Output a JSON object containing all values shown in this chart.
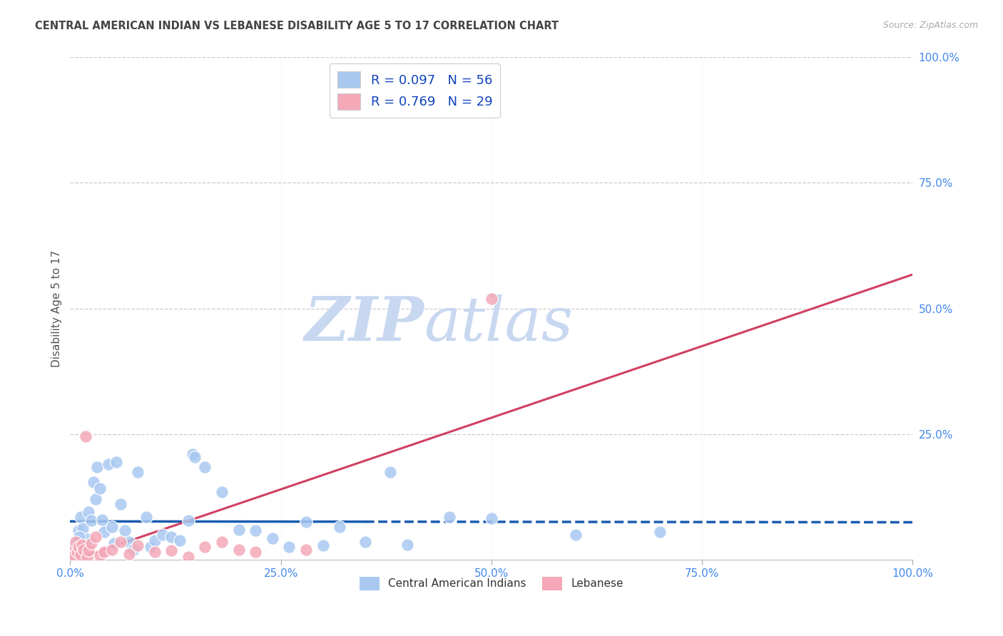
{
  "title": "CENTRAL AMERICAN INDIAN VS LEBANESE DISABILITY AGE 5 TO 17 CORRELATION CHART",
  "source": "Source: ZipAtlas.com",
  "ylabel": "Disability Age 5 to 17",
  "r_blue": 0.097,
  "n_blue": 56,
  "r_pink": 0.769,
  "n_pink": 29,
  "blue_color": "#A8C8F0",
  "pink_color": "#F4A8B8",
  "blue_line_color": "#1A5CB0",
  "pink_line_color": "#D04060",
  "legend_text_color": "#1144BB",
  "title_color": "#444444",
  "grid_color": "#CCCCCC",
  "watermark_color": "#C8D8F0",
  "axis_label_color": "#4488EE",
  "source_color": "#AAAAAA",
  "bottom_legend_color": "#333333",
  "blue_scatter": [
    [
      0.5,
      3.2
    ],
    [
      0.7,
      2.1
    ],
    [
      1.0,
      5.8
    ],
    [
      1.2,
      8.5
    ],
    [
      1.5,
      6.2
    ],
    [
      1.8,
      3.5
    ],
    [
      2.0,
      4.1
    ],
    [
      2.2,
      9.5
    ],
    [
      2.5,
      7.8
    ],
    [
      2.8,
      15.5
    ],
    [
      3.0,
      12.0
    ],
    [
      3.2,
      18.5
    ],
    [
      3.5,
      14.2
    ],
    [
      3.8,
      8.0
    ],
    [
      4.0,
      5.5
    ],
    [
      4.5,
      19.0
    ],
    [
      5.0,
      6.5
    ],
    [
      5.2,
      3.2
    ],
    [
      5.5,
      19.5
    ],
    [
      6.0,
      11.0
    ],
    [
      6.5,
      5.8
    ],
    [
      7.0,
      3.5
    ],
    [
      7.5,
      2.0
    ],
    [
      8.0,
      17.5
    ],
    [
      9.0,
      8.5
    ],
    [
      9.5,
      2.5
    ],
    [
      10.0,
      3.8
    ],
    [
      11.0,
      5.0
    ],
    [
      12.0,
      4.5
    ],
    [
      13.0,
      3.8
    ],
    [
      14.0,
      7.8
    ],
    [
      14.5,
      21.0
    ],
    [
      14.8,
      20.5
    ],
    [
      16.0,
      18.5
    ],
    [
      18.0,
      13.5
    ],
    [
      20.0,
      6.0
    ],
    [
      22.0,
      5.8
    ],
    [
      24.0,
      4.2
    ],
    [
      26.0,
      2.5
    ],
    [
      28.0,
      7.5
    ],
    [
      30.0,
      2.8
    ],
    [
      32.0,
      6.5
    ],
    [
      35.0,
      3.5
    ],
    [
      38.0,
      17.5
    ],
    [
      40.0,
      3.0
    ],
    [
      45.0,
      8.5
    ],
    [
      50.0,
      8.2
    ],
    [
      0.3,
      1.5
    ],
    [
      0.4,
      2.5
    ],
    [
      0.6,
      1.8
    ],
    [
      0.9,
      3.8
    ],
    [
      1.1,
      4.5
    ],
    [
      1.3,
      2.8
    ],
    [
      60.0,
      5.0
    ],
    [
      70.0,
      5.5
    ],
    [
      0.2,
      0.5
    ]
  ],
  "pink_scatter": [
    [
      0.2,
      1.2
    ],
    [
      0.4,
      2.0
    ],
    [
      0.5,
      0.8
    ],
    [
      0.6,
      3.5
    ],
    [
      0.8,
      1.5
    ],
    [
      1.0,
      2.5
    ],
    [
      1.2,
      1.0
    ],
    [
      1.4,
      3.0
    ],
    [
      1.6,
      2.0
    ],
    [
      1.8,
      24.5
    ],
    [
      2.0,
      0.5
    ],
    [
      2.2,
      1.8
    ],
    [
      2.5,
      3.2
    ],
    [
      3.0,
      4.5
    ],
    [
      3.5,
      0.8
    ],
    [
      4.0,
      1.5
    ],
    [
      5.0,
      2.0
    ],
    [
      6.0,
      3.5
    ],
    [
      7.0,
      1.2
    ],
    [
      8.0,
      2.8
    ],
    [
      10.0,
      1.5
    ],
    [
      12.0,
      1.8
    ],
    [
      14.0,
      0.5
    ],
    [
      16.0,
      2.5
    ],
    [
      18.0,
      3.5
    ],
    [
      20.0,
      2.0
    ],
    [
      22.0,
      1.5
    ],
    [
      28.0,
      2.0
    ],
    [
      50.0,
      52.0
    ]
  ],
  "legend_label_blue": "Central American Indians",
  "legend_label_pink": "Lebanese",
  "blue_solid_end": 35,
  "xlim": [
    0,
    100
  ],
  "ylim": [
    0,
    100
  ]
}
